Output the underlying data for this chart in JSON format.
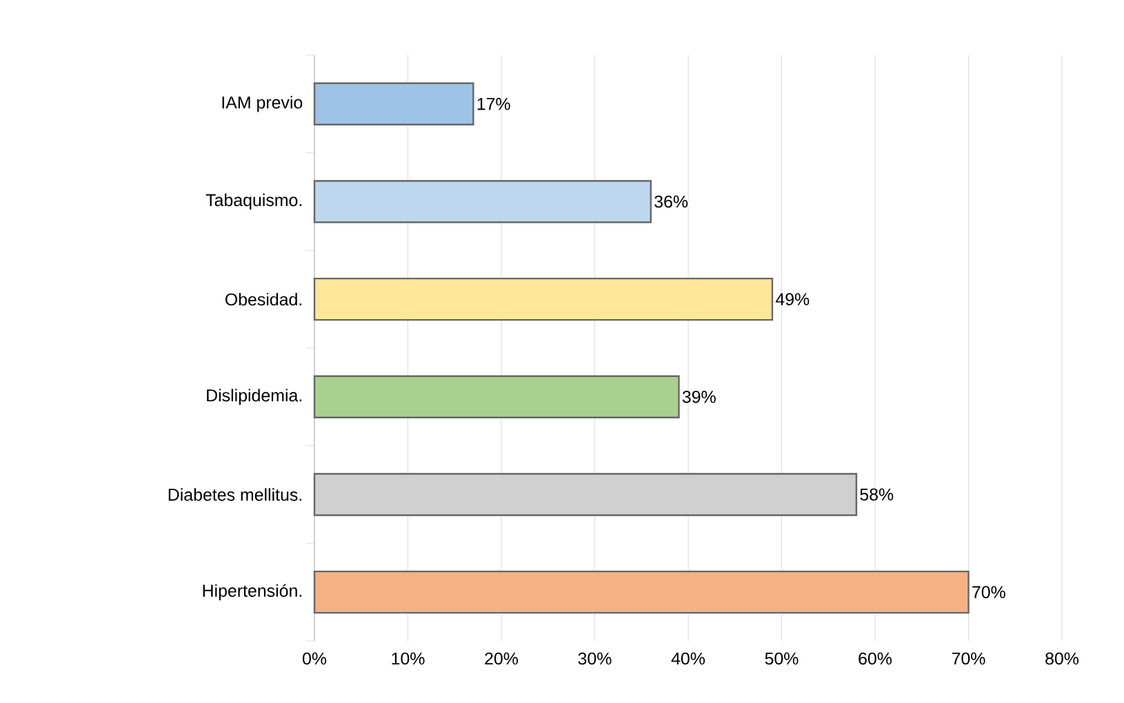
{
  "chart_data": {
    "type": "bar",
    "orientation": "horizontal",
    "categories": [
      "IAM previo",
      "Tabaquismo.",
      "Obesidad.",
      "Dislipidemia.",
      "Diabetes mellitus.",
      "Hipertensión."
    ],
    "values": [
      17,
      36,
      49,
      39,
      58,
      70
    ],
    "colors": [
      "#9dc3e6",
      "#bdd7ee",
      "#ffe699",
      "#a9d18e",
      "#d0d0d0",
      "#f4b183"
    ],
    "value_labels": [
      "17%",
      "36%",
      "49%",
      "39%",
      "58%",
      "70%"
    ],
    "xlim": [
      0,
      80
    ],
    "xticks": [
      {
        "value": 0,
        "label": "0%"
      },
      {
        "value": 10,
        "label": "10%"
      },
      {
        "value": 20,
        "label": "20%"
      },
      {
        "value": 30,
        "label": "30%"
      },
      {
        "value": 40,
        "label": "40%"
      },
      {
        "value": 50,
        "label": "50%"
      },
      {
        "value": 60,
        "label": "60%"
      },
      {
        "value": 70,
        "label": "70%"
      },
      {
        "value": 80,
        "label": "80%"
      }
    ],
    "grid": "x"
  }
}
